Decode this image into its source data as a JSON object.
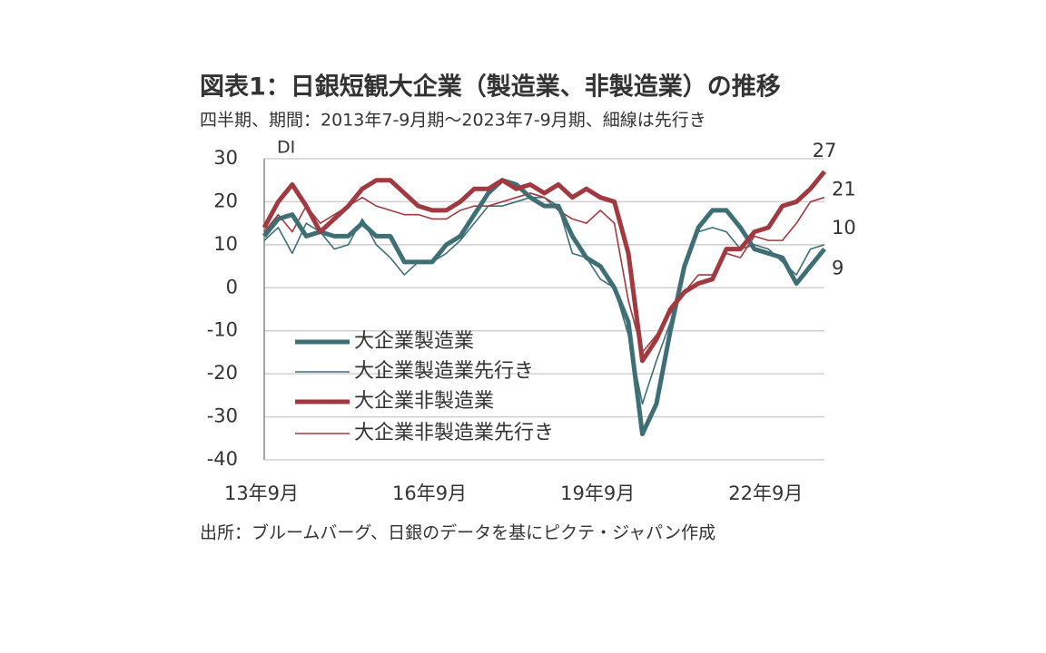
{
  "chart_data": {
    "type": "line",
    "title": "図表1：日銀短観大企業（製造業、非製造業）の推移",
    "subtitle": "四半期、期間：2013年7-9月期～2023年7-9月期、細線は先行き",
    "y_label": "DI",
    "source": "出所：ブルームバーグ、日銀のデータを基にピクテ・ジャパン作成",
    "categories": [
      "13年9月",
      null,
      null,
      null,
      null,
      null,
      null,
      null,
      null,
      null,
      null,
      null,
      "16年9月",
      null,
      null,
      null,
      null,
      null,
      null,
      null,
      null,
      null,
      null,
      null,
      "19年9月",
      null,
      null,
      null,
      null,
      null,
      null,
      null,
      null,
      null,
      null,
      null,
      "22年9月",
      null,
      null,
      null,
      null
    ],
    "ylim": [
      -40,
      30
    ],
    "yticks": [
      -40,
      -30,
      -20,
      -10,
      0,
      10,
      20,
      30
    ],
    "grid": true,
    "series": [
      {
        "name": "大企業製造業",
        "color": "#3e6f75",
        "width": 5,
        "values": [
          12,
          16,
          17,
          12,
          13,
          12,
          12,
          15,
          12,
          12,
          6,
          6,
          6,
          10,
          12,
          17,
          22,
          25,
          24,
          21,
          19,
          19,
          12,
          7,
          5,
          0,
          -8,
          -34,
          -27,
          -10,
          5,
          14,
          18,
          18,
          14,
          9,
          8,
          7,
          1,
          5,
          9
        ]
      },
      {
        "name": "大企業製造業先行き",
        "color": "#3e6f75",
        "width": 1.6,
        "values": [
          11,
          14,
          8,
          15,
          13,
          9,
          10,
          16,
          10,
          7,
          3,
          6,
          6,
          8,
          11,
          15,
          19,
          19,
          20,
          21,
          21,
          19,
          8,
          7,
          2,
          0,
          -11,
          -27,
          -17,
          -8,
          4,
          13,
          14,
          13,
          9,
          10,
          9,
          6,
          3,
          9,
          10
        ]
      },
      {
        "name": "大企業非製造業",
        "color": "#a13a40",
        "width": 5,
        "values": [
          14,
          20,
          24,
          19,
          13,
          16,
          19,
          23,
          25,
          25,
          22,
          19,
          18,
          18,
          20,
          23,
          23,
          25,
          23,
          24,
          22,
          24,
          21,
          23,
          21,
          20,
          8,
          -17,
          -12,
          -5,
          -1,
          1,
          2,
          9,
          9,
          13,
          14,
          19,
          20,
          23,
          27
        ]
      },
      {
        "name": "大企業非製造業先行き",
        "color": "#a13a40",
        "width": 1.6,
        "values": [
          13,
          17,
          13,
          19,
          15,
          17,
          19,
          21,
          19,
          18,
          17,
          17,
          16,
          16,
          18,
          19,
          19,
          20,
          21,
          22,
          21,
          18,
          16,
          15,
          18,
          15,
          -3,
          -15,
          -11,
          -6,
          -1,
          3,
          3,
          8,
          7,
          12,
          11,
          11,
          15,
          20,
          21
        ]
      }
    ]
  }
}
